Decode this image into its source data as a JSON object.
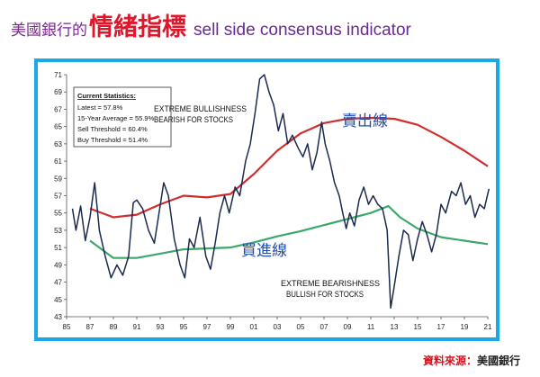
{
  "header": {
    "title_bank": "美國銀行的",
    "title_main": "情緒指標",
    "title_en": "sell side consensus indicator"
  },
  "footer": {
    "source_label": "資料來源：",
    "source_value": "美國銀行"
  },
  "colors": {
    "title_bank": "#7a2a8e",
    "title_main": "#e0162b",
    "title_en": "#6a2a93",
    "frame_border": "#1aa8e6",
    "indicator_line": "#1c2a4e",
    "sell_line": "#cf2e2e",
    "buy_line": "#3aa86b",
    "line_label": "#1f4fb3",
    "source_label": "#d2141f"
  },
  "chart_data": {
    "type": "line",
    "title": "",
    "xlabel": "",
    "ylabel": "",
    "ylim": [
      43,
      71
    ],
    "xlim": [
      1985,
      2021
    ],
    "grid": "none",
    "x_ticks": [
      "85",
      "87",
      "89",
      "91",
      "93",
      "95",
      "97",
      "99",
      "01",
      "03",
      "05",
      "07",
      "09",
      "11",
      "13",
      "15",
      "17",
      "19",
      "21"
    ],
    "y_ticks": [
      "43",
      "45",
      "47",
      "49",
      "51",
      "53",
      "55",
      "57",
      "59",
      "61",
      "63",
      "65",
      "67",
      "69",
      "71"
    ],
    "stats_box": {
      "header": "Current Statistics:",
      "lines": [
        "Latest = 57.8%",
        "15-Year Average = 55.9%",
        "Sell Threshold = 60.4%",
        "Buy Threshold = 51.4%"
      ]
    },
    "annotations": {
      "top_line1": "EXTREME BULLISHNESS",
      "top_line2": "BEARISH FOR STOCKS",
      "bottom_line1": "EXTREME BEARISHNESS",
      "bottom_line2": "BULLISH FOR STOCKS"
    },
    "labels": {
      "sell_line": "賣出線",
      "buy_line": "買進線"
    },
    "series": [
      {
        "values": [
          [
            1985.5,
            55.5
          ],
          [
            1985.8,
            53.0
          ],
          [
            1986.2,
            55.8
          ],
          [
            1986.6,
            51.8
          ],
          [
            1987.0,
            54.5
          ],
          [
            1987.4,
            58.5
          ],
          [
            1987.8,
            53.0
          ],
          [
            1988.3,
            50.0
          ],
          [
            1988.8,
            47.5
          ],
          [
            1989.3,
            49.0
          ],
          [
            1989.8,
            47.8
          ],
          [
            1990.3,
            50.0
          ],
          [
            1990.7,
            56.2
          ],
          [
            1991.0,
            56.5
          ],
          [
            1991.5,
            55.5
          ],
          [
            1992.0,
            53.0
          ],
          [
            1992.5,
            51.5
          ],
          [
            1992.9,
            55.0
          ],
          [
            1993.3,
            58.5
          ],
          [
            1993.7,
            57.0
          ],
          [
            1994.2,
            52.0
          ],
          [
            1994.7,
            49.0
          ],
          [
            1995.1,
            47.5
          ],
          [
            1995.5,
            52.0
          ],
          [
            1995.9,
            51.0
          ],
          [
            1996.4,
            54.5
          ],
          [
            1996.9,
            50.0
          ],
          [
            1997.3,
            48.5
          ],
          [
            1997.7,
            51.5
          ],
          [
            1998.1,
            55.0
          ],
          [
            1998.5,
            57.0
          ],
          [
            1998.9,
            55.0
          ],
          [
            1999.4,
            58.0
          ],
          [
            1999.8,
            57.0
          ],
          [
            2000.3,
            61.0
          ],
          [
            2000.7,
            63.0
          ],
          [
            2001.1,
            66.5
          ],
          [
            2001.5,
            70.5
          ],
          [
            2001.9,
            71.0
          ],
          [
            2002.3,
            69.0
          ],
          [
            2002.7,
            67.5
          ],
          [
            2003.1,
            64.5
          ],
          [
            2003.5,
            66.5
          ],
          [
            2003.9,
            63.0
          ],
          [
            2004.3,
            64.0
          ],
          [
            2004.8,
            62.5
          ],
          [
            2005.2,
            61.5
          ],
          [
            2005.6,
            63.0
          ],
          [
            2006.0,
            60.0
          ],
          [
            2006.4,
            62.0
          ],
          [
            2006.8,
            65.5
          ],
          [
            2007.1,
            63.0
          ],
          [
            2007.5,
            61.0
          ],
          [
            2007.9,
            58.5
          ],
          [
            2008.3,
            57.0
          ],
          [
            2008.6,
            55.0
          ],
          [
            2008.9,
            53.2
          ],
          [
            2009.2,
            55.0
          ],
          [
            2009.6,
            53.5
          ],
          [
            2010.0,
            56.5
          ],
          [
            2010.4,
            58.0
          ],
          [
            2010.8,
            56.0
          ],
          [
            2011.2,
            57.0
          ],
          [
            2011.6,
            56.0
          ],
          [
            2012.0,
            55.5
          ],
          [
            2012.4,
            53.0
          ],
          [
            2012.7,
            44.0
          ],
          [
            2013.0,
            46.5
          ],
          [
            2013.4,
            50.0
          ],
          [
            2013.8,
            53.0
          ],
          [
            2014.2,
            52.5
          ],
          [
            2014.6,
            49.5
          ],
          [
            2015.0,
            52.0
          ],
          [
            2015.4,
            54.0
          ],
          [
            2015.8,
            52.5
          ],
          [
            2016.2,
            50.5
          ],
          [
            2016.6,
            52.5
          ],
          [
            2017.0,
            56.0
          ],
          [
            2017.4,
            55.0
          ],
          [
            2017.9,
            57.5
          ],
          [
            2018.3,
            57.0
          ],
          [
            2018.7,
            58.5
          ],
          [
            2019.1,
            56.0
          ],
          [
            2019.5,
            57.0
          ],
          [
            2019.9,
            54.5
          ],
          [
            2020.3,
            56.0
          ],
          [
            2020.7,
            55.5
          ],
          [
            2021.1,
            57.8
          ]
        ]
      },
      {
        "values": [
          [
            1987.0,
            55.5
          ],
          [
            1989.0,
            54.5
          ],
          [
            1991.0,
            54.8
          ],
          [
            1993.0,
            56.0
          ],
          [
            1995.0,
            57.0
          ],
          [
            1997.0,
            56.8
          ],
          [
            1999.0,
            57.2
          ],
          [
            2001.0,
            59.5
          ],
          [
            2003.0,
            62.2
          ],
          [
            2005.0,
            64.2
          ],
          [
            2007.0,
            65.4
          ],
          [
            2009.0,
            65.9
          ],
          [
            2011.0,
            66.0
          ],
          [
            2013.0,
            65.9
          ],
          [
            2015.0,
            65.2
          ],
          [
            2017.0,
            63.8
          ],
          [
            2019.0,
            62.2
          ],
          [
            2021.0,
            60.4
          ]
        ]
      },
      {
        "values": [
          [
            1987.0,
            51.8
          ],
          [
            1989.0,
            49.8
          ],
          [
            1991.0,
            49.8
          ],
          [
            1993.0,
            50.3
          ],
          [
            1995.0,
            50.8
          ],
          [
            1997.0,
            50.9
          ],
          [
            1999.0,
            51.0
          ],
          [
            2001.0,
            51.6
          ],
          [
            2003.0,
            52.3
          ],
          [
            2005.0,
            52.9
          ],
          [
            2007.0,
            53.6
          ],
          [
            2009.0,
            54.3
          ],
          [
            2011.0,
            55.0
          ],
          [
            2012.5,
            55.8
          ],
          [
            2013.5,
            54.5
          ],
          [
            2015.0,
            53.2
          ],
          [
            2017.0,
            52.2
          ],
          [
            2019.0,
            51.8
          ],
          [
            2021.0,
            51.4
          ]
        ]
      }
    ]
  }
}
